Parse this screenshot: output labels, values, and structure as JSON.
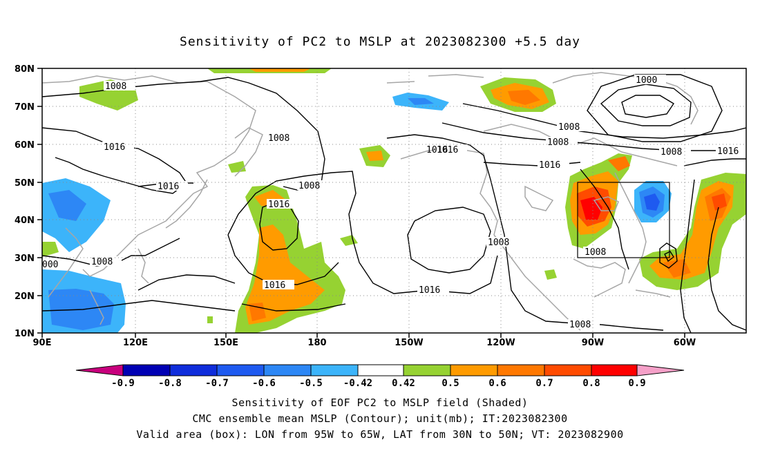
{
  "title": "Sensitivity of PC2 to MSLP at 2023082300 +5.5 day",
  "lat_labels": [
    "80N",
    "70N",
    "60N",
    "50N",
    "40N",
    "30N",
    "20N",
    "10N"
  ],
  "lon_labels": [
    "90E",
    "120E",
    "150E",
    "180",
    "150W",
    "120W",
    "90W",
    "60W"
  ],
  "contour_labels": {
    "c1": "1008",
    "c2": "1016",
    "c3": "1016",
    "c4": "1008",
    "c5": "1016",
    "c6": "1008",
    "c7": "1016",
    "c8": "1016",
    "c9": "1008",
    "c10": "1000",
    "c11": "1008",
    "c12": "1008",
    "c13": "1008",
    "c14": "1016",
    "c15": "1016",
    "c16": "1016",
    "c17": "1008",
    "c18": "1008",
    "c19": "1008",
    "c20": "1016",
    "c21": "000"
  },
  "colorbar": {
    "labels": [
      "-0.9",
      "-0.8",
      "-0.7",
      "-0.6",
      "-0.5",
      "-0.42",
      "0.42",
      "0.5",
      "0.6",
      "0.7",
      "0.8",
      "0.9"
    ],
    "colors": [
      "#0000b4",
      "#0f2ddb",
      "#1e5af0",
      "#2d87f5",
      "#3cb4fa",
      "#00c8ff",
      "#ffffff",
      "#96d232",
      "#ff9b00",
      "#ff7800",
      "#ff4b00",
      "#ff0000"
    ],
    "left_arrow_color": "#c8007d",
    "right_arrow_color": "#f5a0c8"
  },
  "caption": {
    "line1": "Sensitivity of EOF PC2 to MSLP field (Shaded)",
    "line2": "CMC ensemble mean MSLP (Contour); unit(mb); IT:2023082300",
    "line3": "Valid area (box): LON from 95W to 65W, LAT from 30N to 50N; VT: 2023082900"
  }
}
